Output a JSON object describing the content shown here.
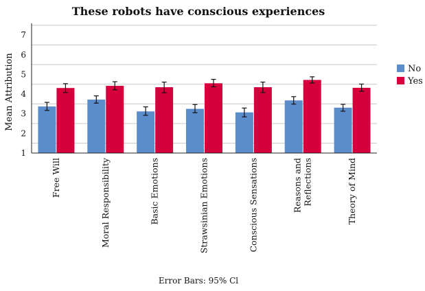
{
  "chart_data": {
    "type": "bar",
    "title": "These robots have conscious experiences",
    "xlabel": "",
    "ylabel": "Mean Attribution",
    "ylim": [
      1,
      7.6
    ],
    "yticks": [
      1,
      2,
      3,
      4,
      5,
      6,
      7
    ],
    "grid": "horizontal",
    "legend_position": "right",
    "categories": [
      "Free Will",
      "Moral Responsibility",
      "Basic Emotions",
      "Strawsinian Emotions",
      "Conscious Sensations",
      "Reasons and Reflections",
      "Theory of Mind"
    ],
    "category_lines": [
      [
        "Free Will"
      ],
      [
        "Moral Responsibility"
      ],
      [
        "Basic Emotions"
      ],
      [
        "Strawsinian Emotions"
      ],
      [
        "Conscious Sensations"
      ],
      [
        "Reasons and",
        "Reflections"
      ],
      [
        "Theory of Mind"
      ]
    ],
    "series": [
      {
        "name": "No",
        "color": "#5b8ccc",
        "values": [
          3.37,
          3.72,
          3.12,
          3.25,
          3.07,
          3.68,
          3.31
        ],
        "error_low": [
          3.17,
          3.54,
          2.92,
          3.05,
          2.84,
          3.49,
          3.13
        ],
        "error_high": [
          3.58,
          3.91,
          3.35,
          3.47,
          3.29,
          3.87,
          3.48
        ]
      },
      {
        "name": "Yes",
        "color": "#d6003c",
        "values": [
          4.31,
          4.42,
          4.35,
          4.55,
          4.35,
          4.72,
          4.32
        ],
        "error_low": [
          4.08,
          4.22,
          4.07,
          4.37,
          4.08,
          4.56,
          4.14
        ],
        "error_high": [
          4.53,
          4.63,
          4.61,
          4.75,
          4.61,
          4.88,
          4.51
        ]
      }
    ],
    "note": "Error Bars: 95% Cl"
  }
}
